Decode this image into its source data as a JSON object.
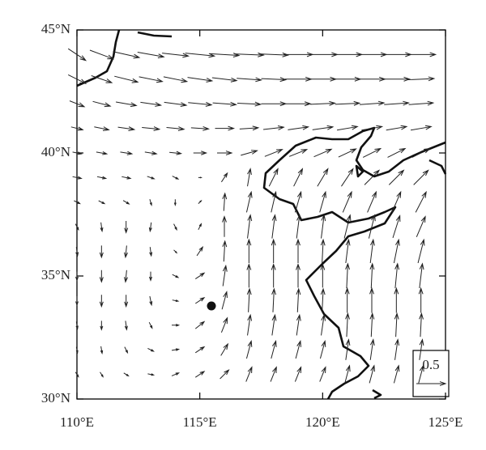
{
  "chart_data": {
    "type": "quiver",
    "xlim": [
      110,
      125
    ],
    "ylim": [
      30,
      45
    ],
    "xticks": [
      {
        "value": 110,
        "label": "110°E"
      },
      {
        "value": 115,
        "label": "115°E"
      },
      {
        "value": 120,
        "label": "120°E"
      },
      {
        "value": 125,
        "label": "125°E"
      }
    ],
    "yticks": [
      {
        "value": 30,
        "label": "30°N"
      },
      {
        "value": 35,
        "label": "35°N"
      },
      {
        "value": 40,
        "label": "40°N"
      },
      {
        "value": 45,
        "label": "45°N"
      }
    ],
    "reference": 0.5,
    "color": "#222222",
    "lon": [
      110,
      111,
      112,
      113,
      114,
      115,
      116,
      117,
      118,
      119,
      120,
      121,
      122,
      123,
      124
    ],
    "lat": [
      44,
      43,
      42,
      41,
      40,
      39,
      38,
      37,
      36,
      35,
      34,
      33,
      32,
      31
    ],
    "u": [
      [
        0.3,
        0.4,
        0.45,
        0.45,
        0.45,
        0.5,
        0.5,
        0.5,
        0.5,
        0.5,
        0.5,
        0.5,
        0.5,
        0.5,
        0.5
      ],
      [
        0.3,
        0.35,
        0.4,
        0.4,
        0.4,
        0.42,
        0.42,
        0.42,
        0.42,
        0.45,
        0.45,
        0.45,
        0.45,
        0.45,
        0.45
      ],
      [
        0.25,
        0.3,
        0.35,
        0.35,
        0.38,
        0.4,
        0.4,
        0.4,
        0.42,
        0.42,
        0.42,
        0.42,
        0.42,
        0.42,
        0.42
      ],
      [
        0.2,
        0.25,
        0.28,
        0.3,
        0.3,
        0.3,
        0.32,
        0.32,
        0.35,
        0.35,
        0.35,
        0.35,
        0.35,
        0.35,
        0.35
      ],
      [
        0.15,
        0.18,
        0.2,
        0.2,
        0.2,
        0.22,
        0.25,
        0.28,
        0.3,
        0.3,
        0.3,
        0.3,
        0.3,
        0.3,
        0.3
      ],
      [
        0.15,
        0.15,
        0.15,
        0.12,
        0.1,
        0.05,
        0.1,
        0.05,
        0.15,
        0.15,
        0.18,
        0.2,
        0.25,
        0.25,
        0.25
      ],
      [
        0.1,
        0.1,
        0.1,
        0.03,
        0,
        0.05,
        0.02,
        0.08,
        0.08,
        0.1,
        0.1,
        0.15,
        0.15,
        0.15,
        0.18
      ],
      [
        0.05,
        0.02,
        0,
        -0.02,
        0.05,
        0.05,
        0,
        0.05,
        0.05,
        0.05,
        0.05,
        0.1,
        0.1,
        0.12,
        0.15
      ],
      [
        0.02,
        0,
        -0.02,
        0.02,
        0.05,
        0.1,
        0.02,
        0,
        0,
        0,
        0.02,
        0.05,
        0.05,
        0.08,
        0.1
      ],
      [
        0,
        0,
        -0.02,
        0,
        0.1,
        0.15,
        0.05,
        0,
        0,
        0,
        0,
        0.02,
        0.02,
        0.04,
        0.05
      ],
      [
        0,
        0,
        0,
        0.03,
        0.1,
        0.15,
        0.08,
        0.02,
        0.02,
        0.02,
        0.02,
        0,
        0,
        0,
        0
      ],
      [
        0.02,
        0,
        0.02,
        0.05,
        0.12,
        0.15,
        0.1,
        0.05,
        0.05,
        0.05,
        0.05,
        0.02,
        0.02,
        0.02,
        0.02
      ],
      [
        0.02,
        0.02,
        0.05,
        0.1,
        0.12,
        0.15,
        0.12,
        0.08,
        0.08,
        0.08,
        0.08,
        0.05,
        0.05,
        0.05,
        0.05
      ],
      [
        0.05,
        0.05,
        0.08,
        0.1,
        0.12,
        0.15,
        0.15,
        0.1,
        0.1,
        0.1,
        0.1,
        0.08,
        0.08,
        0.08,
        0.08
      ]
    ],
    "v": [
      [
        -0.2,
        -0.15,
        -0.1,
        -0.08,
        -0.05,
        -0.05,
        -0.03,
        -0.02,
        -0.02,
        0,
        0,
        0,
        0,
        0,
        0
      ],
      [
        -0.15,
        -0.12,
        -0.1,
        -0.08,
        -0.08,
        -0.06,
        -0.05,
        -0.03,
        -0.02,
        0,
        0,
        0,
        0,
        0,
        0.02
      ],
      [
        -0.1,
        -0.08,
        -0.06,
        -0.05,
        -0.05,
        -0.04,
        -0.03,
        -0.02,
        0,
        0,
        0.02,
        0.02,
        0.03,
        0.03,
        0.03
      ],
      [
        -0.05,
        -0.05,
        -0.04,
        -0.03,
        -0.03,
        -0.02,
        0,
        0.02,
        0.04,
        0.05,
        0.05,
        0.06,
        0.06,
        0.06,
        0.06
      ],
      [
        -0.03,
        -0.03,
        -0.03,
        -0.03,
        -0.02,
        0,
        0,
        0.08,
        0.12,
        0.12,
        0.13,
        0.14,
        0.15,
        0.15,
        0.15
      ],
      [
        -0.03,
        -0.03,
        -0.03,
        -0.04,
        -0.05,
        0,
        0.15,
        0.3,
        0.3,
        0.3,
        0.3,
        0.3,
        0.25,
        0.25,
        0.25
      ],
      [
        -0.05,
        -0.05,
        -0.06,
        -0.1,
        -0.1,
        0.05,
        0.3,
        0.35,
        0.35,
        0.35,
        0.35,
        0.35,
        0.35,
        0.35,
        0.35
      ],
      [
        -0.1,
        -0.15,
        -0.2,
        -0.15,
        -0.1,
        0.1,
        0.35,
        0.4,
        0.4,
        0.4,
        0.4,
        0.4,
        0.4,
        0.38,
        0.35
      ],
      [
        -0.15,
        -0.2,
        -0.2,
        -0.15,
        -0.05,
        0.15,
        0.35,
        0.4,
        0.4,
        0.4,
        0.4,
        0.4,
        0.4,
        0.4,
        0.4
      ],
      [
        -0.15,
        -0.2,
        -0.2,
        -0.15,
        -0.05,
        0.1,
        0.35,
        0.4,
        0.4,
        0.4,
        0.4,
        0.42,
        0.42,
        0.42,
        0.42
      ],
      [
        -0.15,
        -0.2,
        -0.2,
        -0.15,
        -0.02,
        0.1,
        0.3,
        0.4,
        0.4,
        0.4,
        0.4,
        0.42,
        0.42,
        0.42,
        0.42
      ],
      [
        -0.12,
        -0.15,
        -0.15,
        -0.1,
        0,
        0.12,
        0.25,
        0.35,
        0.35,
        0.35,
        0.35,
        0.4,
        0.4,
        0.4,
        0.4
      ],
      [
        -0.1,
        -0.12,
        -0.1,
        -0.05,
        0.02,
        0.1,
        0.2,
        0.3,
        0.3,
        0.3,
        0.3,
        0.35,
        0.35,
        0.35,
        0.35
      ],
      [
        -0.08,
        -0.08,
        -0.05,
        -0.02,
        0.05,
        0.1,
        0.15,
        0.25,
        0.25,
        0.25,
        0.25,
        0.3,
        0.3,
        0.3,
        0.3
      ]
    ]
  }
}
